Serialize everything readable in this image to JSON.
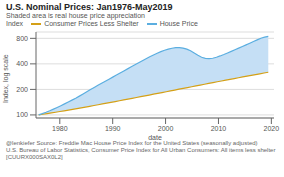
{
  "chart_data": {
    "type": "line",
    "title": "U.S. Nominal Prices: Jan1976-May2019",
    "subtitle": "Shaded area is real house price appreciation",
    "x_label": "date",
    "y_label": "Index, log scale",
    "legend_title": "Index",
    "footnotes": [
      "@lenkiefer Source: Freddie Mac House Price Index for the United States (seasonally adjusted)",
      "U.S. Bureau of Labor Statistics, Consumer Price Index for All Urban Consumers: All items less shelter [CUURX000SAX0L2]"
    ],
    "log": "y",
    "grid": true,
    "legend": "top",
    "shade_color": "#C5DFF5",
    "xlim": [
      1975.5,
      2020.5
    ],
    "xticks": [
      1980,
      1990,
      2000,
      2010,
      2020
    ],
    "ylim": [
      92,
      950
    ],
    "yticks": [
      100,
      200,
      400,
      800
    ],
    "series": [
      {
        "name": "Consumer Prices Less Shelter",
        "color": "#D4A017",
        "x": [
          1976,
          1976.8041,
          1977.6081,
          1978.4122,
          1979.2163,
          1980.0204,
          1980.8244,
          1981.6285,
          1982.4326,
          1983.2367,
          1984.0407,
          1984.8448,
          1985.6489,
          1986.453,
          1987.257,
          1988.0611,
          1988.8652,
          1989.6693,
          1990.4733,
          1991.2774,
          1992.0815,
          1992.8856,
          1993.6896,
          1994.4937,
          1995.2978,
          1996.1019,
          1996.9059,
          1997.71,
          1998.5141,
          1999.3181,
          2000.1222,
          2000.9263,
          2001.7304,
          2002.5344,
          2003.3385,
          2004.1426,
          2004.9467,
          2005.7507,
          2006.5548,
          2007.3589,
          2008.163,
          2008.967,
          2009.7711,
          2010.5752,
          2011.3793,
          2012.1833,
          2012.9874,
          2013.7915,
          2014.5956,
          2015.3996,
          2016.2037,
          2017.0078,
          2017.8119,
          2018.6159,
          2019.42
        ],
        "values": [
          100.0,
          101.8,
          103.7,
          105.6,
          107.6,
          109.7,
          111.9,
          114.1,
          116.4,
          118.8,
          121.3,
          123.8,
          126.4,
          129.1,
          131.9,
          134.7,
          137.7,
          140.7,
          143.8,
          147.0,
          150.2,
          153.6,
          157.0,
          160.5,
          164.1,
          167.8,
          171.6,
          175.5,
          179.5,
          183.6,
          187.8,
          192.1,
          196.5,
          201.0,
          205.6,
          210.3,
          215.1,
          220.0,
          225.0,
          230.1,
          235.3,
          240.5,
          245.9,
          251.4,
          257.0,
          262.7,
          268.5,
          274.4,
          280.4,
          286.5,
          292.7,
          299.0,
          305.4,
          311.9,
          318.5
        ]
      },
      {
        "name": "House Price",
        "color": "#5BAEE0",
        "x": [
          1976,
          1976.7003,
          1977.4006,
          1978.101,
          1978.8013,
          1979.5016,
          1980.2019,
          1980.9023,
          1981.6026,
          1982.3029,
          1983.0032,
          1983.7035,
          1984.4039,
          1985.1042,
          1985.8045,
          1986.5048,
          1987.2052,
          1987.9055,
          1988.6058,
          1989.3061,
          1990.0065,
          1990.7068,
          1991.4071,
          1992.1074,
          1992.8077,
          1993.5081,
          1994.2084,
          1994.9087,
          1995.609,
          1996.3094,
          1997.0097,
          1997.71,
          1998.4103,
          1999.1106,
          1999.811,
          2000.5113,
          2001.2116,
          2001.9119,
          2002.6123,
          2003.3126,
          2004.0129,
          2004.7132,
          2005.4135,
          2006.1139,
          2006.8142,
          2007.5145,
          2008.2148,
          2008.9152,
          2009.6155,
          2010.3158,
          2011.0161,
          2011.7165,
          2012.4168,
          2013.1171,
          2013.8174,
          2014.5177,
          2015.2181,
          2015.9184,
          2016.6187,
          2017.319,
          2018.0194,
          2018.7197,
          2019.42
        ],
        "values": [
          100.0,
          103.5,
          107.5,
          112.0,
          117.0,
          122.5,
          128.5,
          135.0,
          142.0,
          149.5,
          157.5,
          166.5,
          176.5,
          187.5,
          199.0,
          211.0,
          223.5,
          236.5,
          250.0,
          264.0,
          279.0,
          295.0,
          312.0,
          330.0,
          349.0,
          369.0,
          390.0,
          412.0,
          435.0,
          459.0,
          484.0,
          509.0,
          534.0,
          558.0,
          579.0,
          597.0,
          611.0,
          620.0,
          622.0,
          614.0,
          597.0,
          571.0,
          537.0,
          505.0,
          479.0,
          464.0,
          460.0,
          466.0,
          479.0,
          496.0,
          515.0,
          537.0,
          561.0,
          586.0,
          613.0,
          641.0,
          670.0,
          701.0,
          733.0,
          767.0,
          803.0,
          828.0,
          843.0
        ]
      }
    ]
  }
}
